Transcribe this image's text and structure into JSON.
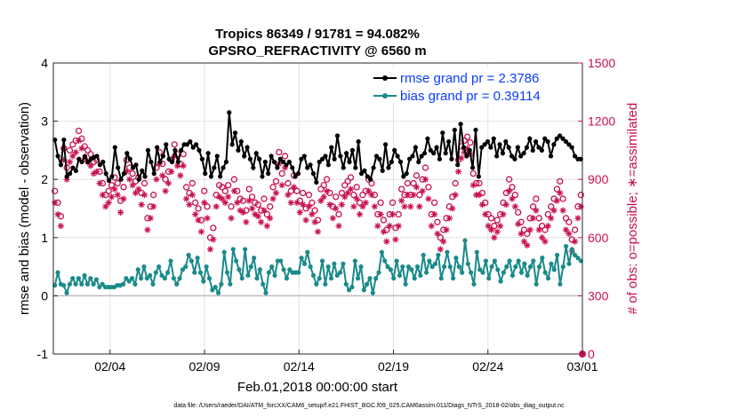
{
  "chart_data": {
    "type": "line",
    "title": "Tropics 86349 / 91781 = 94.082%",
    "subtitle": "GPSRO_REFRACTIVITY @ 6560 m",
    "xlabel": "Feb.01,2018 00:00:00 start",
    "ylabel": "rmse and bias (model - observation)",
    "ylabel_right": "# of obs: o=possible; ∗=assimilated",
    "footer": "data file: /Users/raeder/DAI/ATM_forcXX/CAM6_setup/f.e21.FHIST_BGC.f09_025.CAM6assim.011/Diags_NTrS_2018-02/obs_diag_output.nc",
    "xlim": [
      1,
      29
    ],
    "ylim": [
      -1,
      4
    ],
    "ylim_right": [
      0,
      1500
    ],
    "x_ticks": [
      4,
      9,
      14,
      19,
      24,
      29
    ],
    "x_tick_labels": [
      "02/04",
      "02/09",
      "02/14",
      "02/19",
      "02/24",
      "03/01"
    ],
    "y_tick_labels": [
      "-1",
      "0",
      "1",
      "2",
      "3",
      "4"
    ],
    "y_ticks": [
      -1,
      0,
      1,
      2,
      3,
      4
    ],
    "y_right_tick_labels": [
      "0",
      "300",
      "600",
      "900",
      "1200",
      "1500"
    ],
    "y_right_ticks": [
      0,
      300,
      600,
      900,
      1200,
      1500
    ],
    "legend": [
      {
        "text": "rmse grand pr = 2.3786",
        "color": "#000000"
      },
      {
        "text": "bias grand pr = 0.39114",
        "color": "#1a8a8a"
      }
    ],
    "series": [
      {
        "name": "rmse",
        "color": "#000000",
        "axis": "left",
        "values": [
          2.68,
          2.4,
          2.25,
          2.68,
          2.05,
          2.1,
          2.2,
          2.15,
          2.35,
          2.3,
          2.4,
          2.3,
          2.35,
          2.38,
          2.4,
          2.25,
          2.3,
          2.1,
          1.98,
          2.05,
          2.55,
          2.2,
          2.0,
          2.1,
          2.45,
          2.35,
          2.2,
          2.25,
          2.0,
          2.15,
          2.05,
          2.5,
          2.3,
          2.1,
          2.55,
          2.3,
          2.4,
          2.6,
          2.35,
          2.3,
          2.5,
          2.3,
          2.5,
          2.6,
          2.6,
          2.65,
          2.55,
          2.6,
          2.5,
          2.35,
          2.1,
          2.45,
          2.05,
          2.2,
          2.4,
          2.05,
          2.2,
          2.3,
          3.15,
          2.6,
          2.8,
          2.5,
          2.65,
          2.4,
          2.55,
          2.35,
          2.2,
          2.45,
          2.35,
          2.05,
          2.3,
          2.1,
          2.4,
          2.3,
          2.2,
          2.35,
          2.3,
          2.25,
          2.3,
          2.2,
          2.05,
          2.1,
          2.35,
          2.4,
          2.2,
          2.25,
          2.1,
          1.95,
          2.3,
          2.35,
          2.4,
          2.25,
          2.55,
          2.35,
          2.75,
          2.4,
          2.2,
          2.45,
          2.3,
          2.5,
          2.2,
          2.65,
          2.1,
          2.15,
          2.05,
          2.0,
          2.2,
          2.4,
          2.35,
          2.15,
          2.6,
          2.2,
          2.3,
          2.5,
          2.4,
          2.3,
          2.05,
          2.1,
          2.35,
          2.4,
          2.55,
          2.3,
          2.4,
          2.45,
          2.7,
          2.5,
          2.45,
          2.55,
          2.35,
          2.8,
          2.45,
          2.65,
          2.35,
          2.85,
          2.25,
          2.95,
          2.55,
          2.4,
          2.5,
          2.2,
          2.85,
          2.05,
          2.55,
          2.6,
          2.65,
          2.55,
          2.7,
          2.4,
          2.6,
          2.45,
          2.65,
          2.55,
          2.4,
          2.35,
          2.55,
          2.4,
          2.45,
          2.55,
          2.7,
          2.5,
          2.65,
          2.55,
          2.5,
          2.7,
          2.65,
          2.4,
          2.6,
          2.7,
          2.75,
          2.7,
          2.65,
          2.6,
          2.55,
          2.4,
          2.35,
          2.35
        ]
      },
      {
        "name": "bias",
        "color": "#1a8a8a",
        "axis": "left",
        "values": [
          0.18,
          0.4,
          0.2,
          0.18,
          0.05,
          0.2,
          0.3,
          0.2,
          0.3,
          0.2,
          0.35,
          0.2,
          0.3,
          0.2,
          0.28,
          0.15,
          0.2,
          0.15,
          0.15,
          0.15,
          0.15,
          0.18,
          0.18,
          0.2,
          0.3,
          0.25,
          0.3,
          0.2,
          0.45,
          0.3,
          0.5,
          0.3,
          0.35,
          0.2,
          0.4,
          0.5,
          0.35,
          0.3,
          0.4,
          0.6,
          0.3,
          0.2,
          0.3,
          0.45,
          0.5,
          0.7,
          0.6,
          0.4,
          0.65,
          0.4,
          0.25,
          0.5,
          0.3,
          0.1,
          0.15,
          0.05,
          0.2,
          0.75,
          0.4,
          0.2,
          0.8,
          0.6,
          0.45,
          0.3,
          0.8,
          0.35,
          0.5,
          0.65,
          0.3,
          0.45,
          0.2,
          0.05,
          0.4,
          0.5,
          0.35,
          0.6,
          0.6,
          0.45,
          0.3,
          0.45,
          0.4,
          0.4,
          0.4,
          0.65,
          0.55,
          0.75,
          0.5,
          0.35,
          0.2,
          0.3,
          0.6,
          0.2,
          0.5,
          0.3,
          0.55,
          0.35,
          0.4,
          0.55,
          0.2,
          0.1,
          0.15,
          0.6,
          0.3,
          0.5,
          0.1,
          0.2,
          0.3,
          0.05,
          0.3,
          0.4,
          0.75,
          0.6,
          0.5,
          0.45,
          0.3,
          0.6,
          0.35,
          0.5,
          0.2,
          0.5,
          0.45,
          0.3,
          0.5,
          0.35,
          0.7,
          0.4,
          0.6,
          0.5,
          0.55,
          0.7,
          0.3,
          0.5,
          0.75,
          0.5,
          0.3,
          0.65,
          0.5,
          0.4,
          0.95,
          0.55,
          0.4,
          0.2,
          0.75,
          0.45,
          0.4,
          0.6,
          0.3,
          0.5,
          0.6,
          0.45,
          0.25,
          0.4,
          0.5,
          0.6,
          0.35,
          0.5,
          0.6,
          0.4,
          0.55,
          0.35,
          0.5,
          0.6,
          0.2,
          0.5,
          0.65,
          0.4,
          0.3,
          0.55,
          0.45,
          0.7,
          0.2,
          0.5,
          0.85,
          0.55,
          0.8,
          0.7,
          0.65,
          0.6
        ]
      },
      {
        "name": "# possible obs",
        "marker": "o",
        "color": "#c8104f",
        "axis": "right",
        "values": [
          840,
          780,
          710,
          1060,
          960,
          1050,
          1080,
          1100,
          1150,
          1110,
          1070,
          1050,
          1030,
          990,
          1000,
          940,
          880,
          820,
          840,
          870,
          910,
          880,
          790,
          860,
          1000,
          960,
          930,
          890,
          910,
          830,
          880,
          700,
          760,
          820,
          960,
          1040,
          980,
          900,
          940,
          1000,
          1080,
          1030,
          980,
          1030,
          860,
          830,
          880,
          780,
          750,
          690,
          840,
          760,
          600,
          650,
          820,
          870,
          860,
          840,
          870,
          760,
          900,
          840,
          800,
          790,
          740,
          850,
          810,
          780,
          770,
          740,
          800,
          720,
          760,
          860,
          890,
          1040,
          930,
          1020,
          880,
          840,
          920,
          840,
          790,
          830,
          750,
          820,
          780,
          740,
          690,
          850,
          870,
          900,
          830,
          760,
          810,
          720,
          830,
          870,
          890,
          910,
          820,
          860,
          780,
          820,
          840,
          900,
          880,
          820,
          720,
          780,
          690,
          640,
          720,
          780,
          650,
          720,
          850,
          820,
          880,
          820,
          880,
          920,
          820,
          900,
          960,
          860,
          720,
          780,
          680,
          600,
          640,
          700,
          760,
          810,
          880,
          1000,
          1070,
          1100,
          1120,
          1090,
          930,
          880,
          880,
          830,
          780,
          720,
          700,
          660,
          690,
          720,
          780,
          830,
          900,
          860,
          820,
          730,
          680,
          640,
          620,
          700,
          760,
          800,
          700,
          660,
          640,
          720,
          760,
          800,
          850,
          890,
          800,
          700,
          680,
          590,
          640,
          760,
          820
        ]
      },
      {
        "name": "# assimilated obs",
        "marker": "*",
        "color": "#c8104f",
        "axis": "right",
        "values": [
          780,
          720,
          660,
          1000,
          900,
          990,
          1020,
          1040,
          1100,
          1060,
          1010,
          990,
          970,
          930,
          940,
          880,
          820,
          760,
          780,
          810,
          850,
          820,
          730,
          800,
          940,
          900,
          870,
          830,
          850,
          770,
          820,
          640,
          700,
          760,
          900,
          980,
          920,
          840,
          880,
          940,
          1020,
          970,
          920,
          970,
          800,
          770,
          820,
          720,
          690,
          630,
          780,
          700,
          540,
          590,
          760,
          810,
          800,
          780,
          810,
          700,
          840,
          780,
          740,
          730,
          680,
          790,
          750,
          720,
          710,
          680,
          740,
          660,
          700,
          800,
          830,
          980,
          870,
          960,
          820,
          780,
          860,
          780,
          730,
          770,
          690,
          760,
          720,
          680,
          630,
          790,
          810,
          840,
          770,
          700,
          750,
          660,
          770,
          810,
          830,
          850,
          760,
          800,
          720,
          760,
          780,
          840,
          820,
          760,
          660,
          720,
          630,
          580,
          660,
          720,
          590,
          660,
          790,
          760,
          820,
          760,
          820,
          860,
          760,
          840,
          900,
          800,
          660,
          720,
          620,
          540,
          580,
          640,
          700,
          750,
          820,
          940,
          1010,
          1040,
          1060,
          1030,
          870,
          820,
          820,
          770,
          720,
          660,
          640,
          600,
          630,
          660,
          720,
          770,
          840,
          800,
          760,
          670,
          620,
          580,
          560,
          640,
          700,
          740,
          640,
          600,
          580,
          660,
          700,
          740,
          790,
          830,
          740,
          640,
          620,
          530,
          580,
          700,
          760
        ]
      }
    ]
  }
}
